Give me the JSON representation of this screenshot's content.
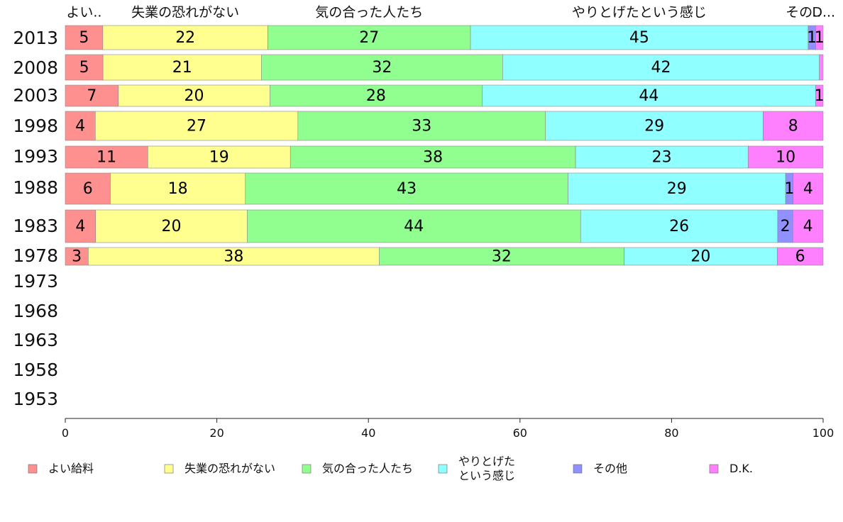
{
  "chart_data": {
    "type": "bar",
    "orientation": "horizontal",
    "stacked": true,
    "categories": [
      "2013",
      "2008",
      "2003",
      "1998",
      "1993",
      "1988",
      "1983",
      "1978",
      "1973",
      "1968",
      "1963",
      "1958",
      "1953"
    ],
    "series": [
      {
        "name": "よい給料",
        "color": "#ff9090",
        "values": [
          5,
          5,
          7,
          4,
          11,
          6,
          4,
          3,
          null,
          null,
          null,
          null,
          null
        ]
      },
      {
        "name": "失業の恐れがない",
        "color": "#ffff90",
        "values": [
          22,
          21,
          20,
          27,
          19,
          18,
          20,
          38,
          null,
          null,
          null,
          null,
          null
        ]
      },
      {
        "name": "気の合った人たち",
        "color": "#90ff90",
        "values": [
          27,
          32,
          28,
          33,
          38,
          43,
          44,
          32,
          null,
          null,
          null,
          null,
          null
        ]
      },
      {
        "name": "やりとげたという感じ",
        "color": "#90ffff",
        "values": [
          45,
          42,
          44,
          29,
          23,
          29,
          26,
          20,
          null,
          null,
          null,
          null,
          null
        ]
      },
      {
        "name": "その他",
        "color": "#9090ff",
        "values": [
          1,
          0,
          0,
          0,
          0,
          1,
          2,
          0,
          null,
          null,
          null,
          null,
          null
        ]
      },
      {
        "name": "D.K.",
        "color": "#ff80ff",
        "values": [
          1,
          0.5,
          1,
          8,
          10,
          4,
          4,
          6,
          null,
          null,
          null,
          null,
          null
        ]
      }
    ],
    "labels": [
      [
        "5",
        "22",
        "27",
        "45",
        "1",
        "1"
      ],
      [
        "5",
        "21",
        "32",
        "42",
        "",
        ""
      ],
      [
        "7",
        "20",
        "28",
        "44",
        "",
        "1"
      ],
      [
        "4",
        "27",
        "33",
        "29",
        "",
        "8"
      ],
      [
        "11",
        "19",
        "38",
        "23",
        "",
        "10"
      ],
      [
        "6",
        "18",
        "43",
        "29",
        "1",
        "4"
      ],
      [
        "4",
        "20",
        "44",
        "26",
        "2",
        "4"
      ],
      [
        "3",
        "38",
        "32",
        "20",
        "",
        "6"
      ]
    ],
    "xlim": [
      0,
      100
    ],
    "xticks": [
      "0",
      "20",
      "40",
      "60",
      "80",
      "100"
    ],
    "top_labels": [
      "よい..",
      "失業の恐れがない",
      "気の合った人たち",
      "やりとげたという感じ",
      "その..",
      "D..."
    ],
    "legend": [
      "よい給料",
      "失業の恐れがない",
      "気の合った人たち",
      "やりとげた\nという感じ",
      "その他",
      "D.K."
    ],
    "legend_position": "bottom"
  }
}
